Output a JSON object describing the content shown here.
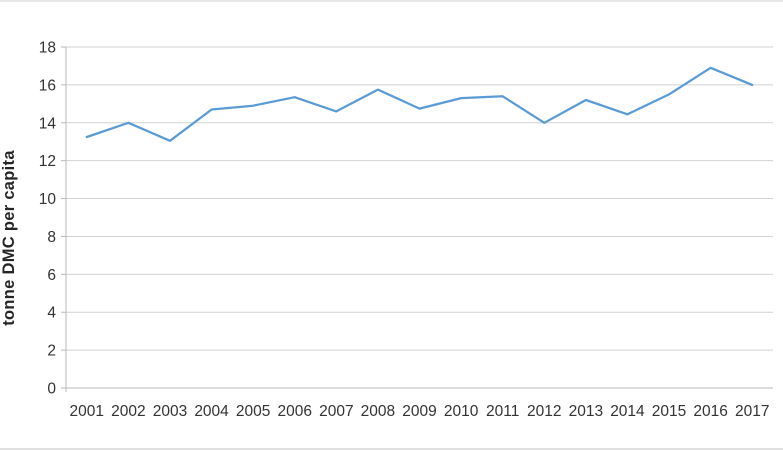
{
  "chart_data": {
    "type": "line",
    "title": "",
    "xlabel": "",
    "ylabel": "tonne DMC per capita",
    "categories": [
      "2001",
      "2002",
      "2003",
      "2004",
      "2005",
      "2006",
      "2007",
      "2008",
      "2009",
      "2010",
      "2011",
      "2012",
      "2013",
      "2014",
      "2015",
      "2016",
      "2017"
    ],
    "series": [
      {
        "name": "tonne DMC per capita",
        "values": [
          13.25,
          14.0,
          13.05,
          14.7,
          14.9,
          15.35,
          14.6,
          15.75,
          14.75,
          15.3,
          15.4,
          14.0,
          15.2,
          14.45,
          15.5,
          16.9,
          16.0
        ]
      }
    ],
    "ylim": [
      0,
      18
    ],
    "ytick_step": 2,
    "grid": "horizontal",
    "legend_position": "none"
  },
  "colors": {
    "line": "#5b9bd5",
    "gridline": "#d2d2d2",
    "axis": "#b9b9b9",
    "tick_label": "#333333",
    "axis_title": "#262626"
  }
}
